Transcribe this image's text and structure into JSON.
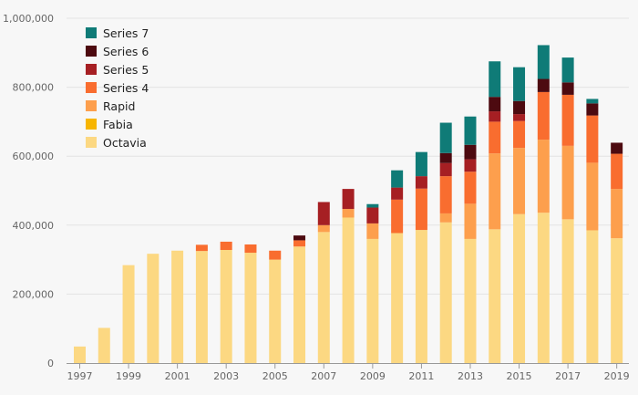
{
  "chart_data": {
    "type": "bar",
    "stacked": true,
    "categories": [
      "1997",
      "1998",
      "1999",
      "2000",
      "2001",
      "2002",
      "2003",
      "2004",
      "2005",
      "2006",
      "2007",
      "2008",
      "2009",
      "2010",
      "2011",
      "2012",
      "2013",
      "2014",
      "2015",
      "2016",
      "2017",
      "2018",
      "2019"
    ],
    "x_tick_labels": [
      "1997",
      "1999",
      "2001",
      "2003",
      "2005",
      "2007",
      "2009",
      "2011",
      "2013",
      "2015",
      "2017",
      "2019"
    ],
    "ylim": [
      0,
      1000000
    ],
    "y_ticks": [
      0,
      200000,
      400000,
      600000,
      800000,
      1000000
    ],
    "y_tick_labels": [
      "0",
      "200,000",
      "400,000",
      "600,000",
      "800,000",
      "1,000,000"
    ],
    "grid": true,
    "legend_position": "top-left",
    "xlabel": "",
    "ylabel": "",
    "series": [
      {
        "name": "Octavia",
        "color": "#fcd882",
        "values": [
          48000,
          102000,
          284000,
          317000,
          326000,
          325000,
          328000,
          320000,
          300000,
          338000,
          380000,
          422000,
          360000,
          377000,
          386000,
          408000,
          360000,
          388000,
          432000,
          436000,
          417000,
          385000,
          362000
        ]
      },
      {
        "name": "Fabia",
        "color": "#f7b500",
        "values": [
          0,
          0,
          0,
          0,
          0,
          0,
          0,
          0,
          0,
          0,
          0,
          0,
          0,
          0,
          0,
          0,
          0,
          0,
          0,
          0,
          0,
          0,
          0
        ]
      },
      {
        "name": "Rapid",
        "color": "#fd9f4d",
        "values": [
          0,
          0,
          0,
          0,
          0,
          0,
          0,
          0,
          0,
          0,
          20000,
          25000,
          45000,
          0,
          0,
          26000,
          102000,
          220000,
          192000,
          212000,
          213000,
          196000,
          143000
        ]
      },
      {
        "name": "Series 4",
        "color": "#f96d2f",
        "values": [
          0,
          0,
          0,
          0,
          0,
          18000,
          24000,
          24000,
          26000,
          18000,
          0,
          0,
          0,
          97000,
          120000,
          108000,
          93000,
          92000,
          78000,
          138000,
          148000,
          137000,
          102000
        ]
      },
      {
        "name": "Series 5",
        "color": "#a61f23",
        "values": [
          0,
          0,
          0,
          0,
          0,
          0,
          0,
          0,
          0,
          0,
          67000,
          58000,
          46000,
          35000,
          36000,
          38000,
          36000,
          30000,
          20000,
          0,
          0,
          0,
          0
        ]
      },
      {
        "name": "Series 6",
        "color": "#4d0a10",
        "values": [
          0,
          0,
          0,
          0,
          0,
          0,
          0,
          0,
          0,
          14000,
          0,
          0,
          0,
          0,
          0,
          29000,
          42000,
          42000,
          38000,
          38000,
          36000,
          35000,
          32000
        ]
      },
      {
        "name": "Series 7",
        "color": "#0f7b77",
        "values": [
          0,
          0,
          0,
          0,
          0,
          0,
          0,
          0,
          0,
          0,
          0,
          0,
          10000,
          50000,
          70000,
          88000,
          82000,
          103000,
          98000,
          98000,
          72000,
          13000,
          0
        ]
      }
    ],
    "legend_order": [
      "Series 7",
      "Series 6",
      "Series 5",
      "Series 4",
      "Rapid",
      "Fabia",
      "Octavia"
    ]
  }
}
